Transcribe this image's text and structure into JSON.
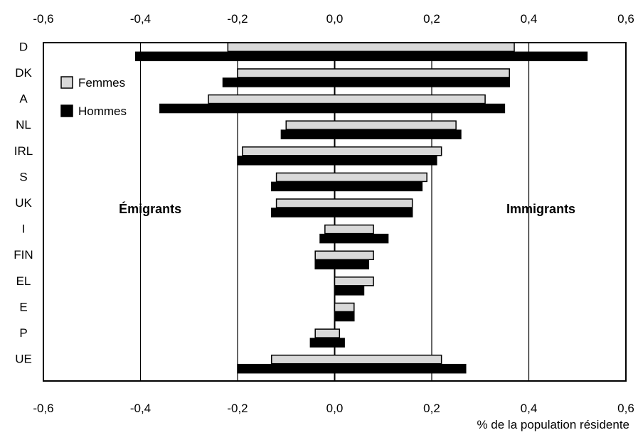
{
  "chart_data": {
    "type": "bar",
    "orientation": "horizontal",
    "categories": [
      "D",
      "DK",
      "A",
      "NL",
      "IRL",
      "S",
      "UK",
      "I",
      "FIN",
      "EL",
      "E",
      "P",
      "UE"
    ],
    "series": [
      {
        "name": "Femmes",
        "color": "#d9d9d9",
        "emigrants": [
          -0.22,
          -0.2,
          -0.26,
          -0.1,
          -0.19,
          -0.12,
          -0.12,
          -0.02,
          -0.04,
          0.0,
          0.0,
          -0.04,
          -0.13
        ],
        "immigrants": [
          0.37,
          0.36,
          0.31,
          0.25,
          0.22,
          0.19,
          0.16,
          0.08,
          0.08,
          0.08,
          0.04,
          0.01,
          0.22
        ]
      },
      {
        "name": "Hommes",
        "color": "#000000",
        "emigrants": [
          -0.41,
          -0.23,
          -0.36,
          -0.11,
          -0.2,
          -0.13,
          -0.13,
          -0.03,
          -0.04,
          0.0,
          0.0,
          -0.05,
          -0.2
        ],
        "immigrants": [
          0.52,
          0.36,
          0.35,
          0.26,
          0.21,
          0.18,
          0.16,
          0.11,
          0.07,
          0.06,
          0.04,
          0.02,
          0.27
        ]
      }
    ],
    "xlim": [
      -0.6,
      0.6
    ],
    "xticks": [
      "-0,6",
      "-0,4",
      "-0,2",
      "0,0",
      "0,2",
      "0,4",
      "0,6"
    ],
    "xtick_values": [
      -0.6,
      -0.4,
      -0.2,
      0.0,
      0.2,
      0.4,
      0.6
    ],
    "xlabel": "% de la population résidente",
    "annotations": {
      "left": "Émigrants",
      "right": "Immigrants"
    },
    "legend": {
      "placement": "top-left",
      "entries": [
        "Femmes",
        "Hommes"
      ]
    },
    "grid": "vertical"
  }
}
